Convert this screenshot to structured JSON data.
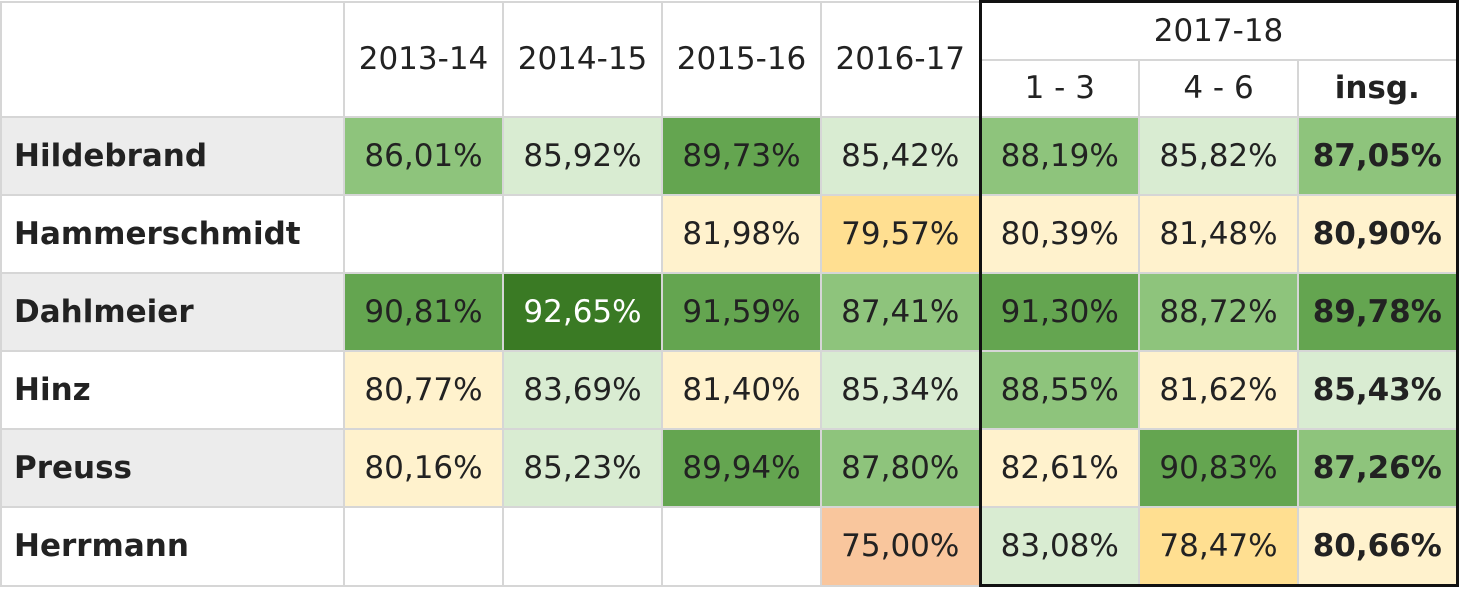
{
  "chart_data": {
    "type": "table",
    "header": {
      "years": [
        "2013-14",
        "2014-15",
        "2015-16",
        "2016-17"
      ],
      "group_label": "2017-18",
      "group_sub": [
        "1 - 3",
        "4 - 6",
        "insg."
      ]
    },
    "rows": [
      {
        "name": "Hildebrand",
        "values": [
          "86,01%",
          "85,92%",
          "89,73%",
          "85,42%",
          "88,19%",
          "85,82%",
          "87,05%"
        ],
        "numeric": [
          86.01,
          85.92,
          89.73,
          85.42,
          88.19,
          85.82,
          87.05
        ]
      },
      {
        "name": "Hammerschmidt",
        "values": [
          "",
          "",
          "81,98%",
          "79,57%",
          "80,39%",
          "81,48%",
          "80,90%"
        ],
        "numeric": [
          null,
          null,
          81.98,
          79.57,
          80.39,
          81.48,
          80.9
        ]
      },
      {
        "name": "Dahlmeier",
        "values": [
          "90,81%",
          "92,65%",
          "91,59%",
          "87,41%",
          "91,30%",
          "88,72%",
          "89,78%"
        ],
        "numeric": [
          90.81,
          92.65,
          91.59,
          87.41,
          91.3,
          88.72,
          89.78
        ]
      },
      {
        "name": "Hinz",
        "values": [
          "80,77%",
          "83,69%",
          "81,40%",
          "85,34%",
          "88,55%",
          "81,62%",
          "85,43%"
        ],
        "numeric": [
          80.77,
          83.69,
          81.4,
          85.34,
          88.55,
          81.62,
          85.43
        ]
      },
      {
        "name": "Preuss",
        "values": [
          "80,16%",
          "85,23%",
          "89,94%",
          "87,80%",
          "82,61%",
          "90,83%",
          "87,26%"
        ],
        "numeric": [
          80.16,
          85.23,
          89.94,
          87.8,
          82.61,
          90.83,
          87.26
        ]
      },
      {
        "name": "Herrmann",
        "values": [
          "",
          "",
          "",
          "75,00%",
          "83,08%",
          "78,47%",
          "80,66%"
        ],
        "numeric": [
          null,
          null,
          null,
          75.0,
          83.08,
          78.47,
          80.66
        ]
      }
    ],
    "colors": {
      "dark_green": "#3a7a24",
      "green": "#64a550",
      "mid_green": "#8ec47c",
      "light_green": "#d9ecd2",
      "light_yellow": "#fff2cd",
      "yellow": "#ffdf91",
      "orange": "#f9c69d",
      "label_band": "#ececec"
    }
  }
}
